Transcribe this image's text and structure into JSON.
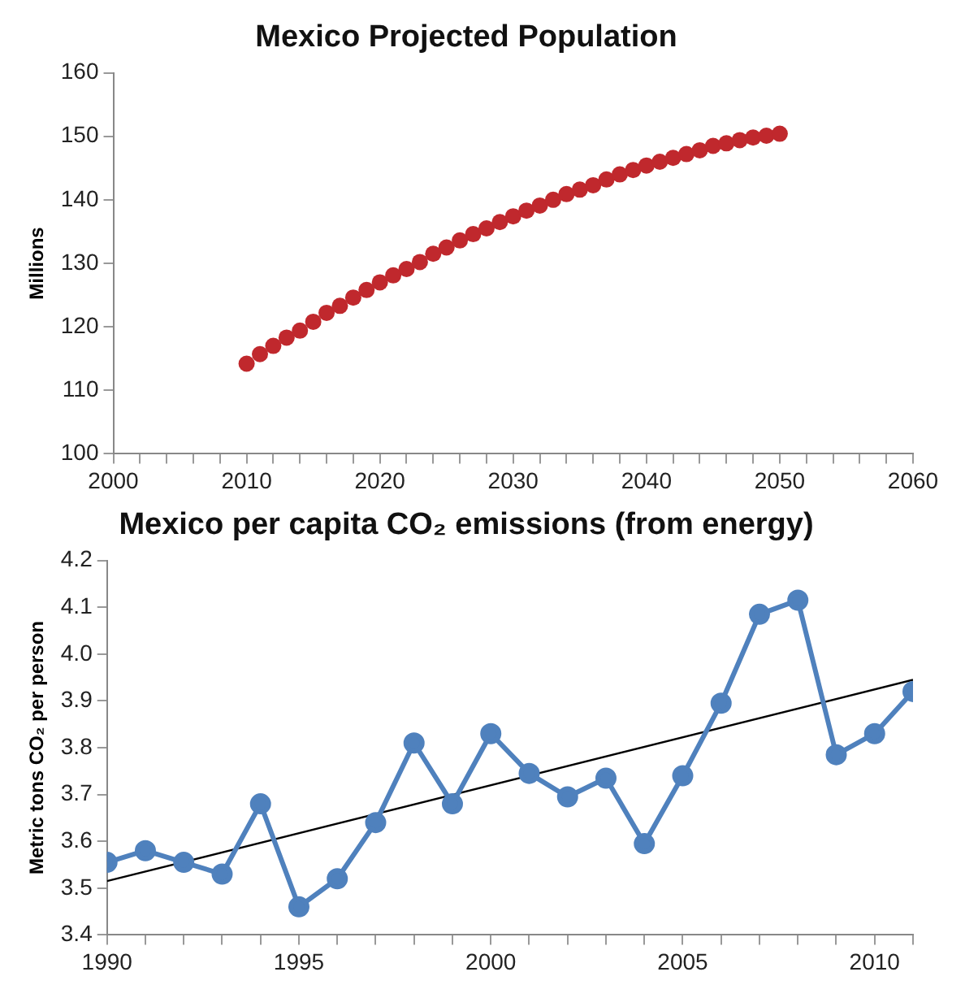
{
  "chart_data": [
    {
      "type": "scatter",
      "title": "Mexico Projected Population",
      "ylabel": "Millions",
      "xlim": [
        2000,
        2060
      ],
      "ylim": [
        100,
        160
      ],
      "xticks": [
        2000,
        {
          "value": 2002,
          "label": null
        },
        {
          "value": 2004,
          "label": null
        },
        {
          "value": 2006,
          "label": null
        },
        {
          "value": 2008,
          "label": null
        },
        2010,
        {
          "value": 2012,
          "label": null
        },
        {
          "value": 2014,
          "label": null
        },
        {
          "value": 2016,
          "label": null
        },
        {
          "value": 2018,
          "label": null
        },
        2020,
        {
          "value": 2022,
          "label": null
        },
        {
          "value": 2024,
          "label": null
        },
        {
          "value": 2026,
          "label": null
        },
        {
          "value": 2028,
          "label": null
        },
        2030,
        {
          "value": 2032,
          "label": null
        },
        {
          "value": 2034,
          "label": null
        },
        {
          "value": 2036,
          "label": null
        },
        {
          "value": 2038,
          "label": null
        },
        2040,
        {
          "value": 2042,
          "label": null
        },
        {
          "value": 2044,
          "label": null
        },
        {
          "value": 2046,
          "label": null
        },
        {
          "value": 2048,
          "label": null
        },
        2050,
        {
          "value": 2052,
          "label": null
        },
        {
          "value": 2054,
          "label": null
        },
        {
          "value": 2056,
          "label": null
        },
        {
          "value": 2058,
          "label": null
        },
        2060
      ],
      "yticks": [
        100,
        110,
        120,
        130,
        140,
        150,
        160
      ],
      "grid": false,
      "legend": false,
      "marker": "circle",
      "x": [
        2010,
        2011,
        2012,
        2013,
        2014,
        2015,
        2016,
        2017,
        2018,
        2019,
        2020,
        2021,
        2022,
        2023,
        2024,
        2025,
        2026,
        2027,
        2028,
        2029,
        2030,
        2031,
        2032,
        2033,
        2034,
        2035,
        2036,
        2037,
        2038,
        2039,
        2040,
        2041,
        2042,
        2043,
        2044,
        2045,
        2046,
        2047,
        2048,
        2049,
        2050
      ],
      "series": [
        {
          "color": "#c0282d",
          "values": [
            114.2,
            115.7,
            117.0,
            118.3,
            119.4,
            120.8,
            122.2,
            123.3,
            124.6,
            125.8,
            127.0,
            128.1,
            129.1,
            130.2,
            131.5,
            132.5,
            133.6,
            134.6,
            135.5,
            136.5,
            137.4,
            138.3,
            139.1,
            140.0,
            140.9,
            141.6,
            142.3,
            143.2,
            144.0,
            144.7,
            145.4,
            146.0,
            146.6,
            147.2,
            147.8,
            148.5,
            148.9,
            149.4,
            149.8,
            150.1,
            150.4
          ]
        }
      ]
    },
    {
      "type": "line",
      "title": "Mexico per capita CO₂ emissions (from energy)",
      "ylabel": "Metric tons CO₂ per person",
      "xlim": [
        1990,
        2011
      ],
      "ylim": [
        3.4,
        4.2
      ],
      "xticks": [
        1990,
        {
          "value": 1991,
          "label": null
        },
        {
          "value": 1992,
          "label": null
        },
        {
          "value": 1993,
          "label": null
        },
        {
          "value": 1994,
          "label": null
        },
        1995,
        {
          "value": 1996,
          "label": null
        },
        {
          "value": 1997,
          "label": null
        },
        {
          "value": 1998,
          "label": null
        },
        {
          "value": 1999,
          "label": null
        },
        2000,
        {
          "value": 2001,
          "label": null
        },
        {
          "value": 2002,
          "label": null
        },
        {
          "value": 2003,
          "label": null
        },
        {
          "value": 2004,
          "label": null
        },
        2005,
        {
          "value": 2006,
          "label": null
        },
        {
          "value": 2007,
          "label": null
        },
        {
          "value": 2008,
          "label": null
        },
        {
          "value": 2009,
          "label": null
        },
        2010,
        {
          "value": 2011,
          "label": null
        }
      ],
      "yticks": [
        {
          "value": 3.4,
          "label": "3.4"
        },
        {
          "value": 3.5,
          "label": "3.5"
        },
        {
          "value": 3.6,
          "label": "3.6"
        },
        {
          "value": 3.7,
          "label": "3.7"
        },
        {
          "value": 3.8,
          "label": "3.8"
        },
        {
          "value": 3.9,
          "label": "3.9"
        },
        {
          "value": 4.0,
          "label": "4.0"
        },
        {
          "value": 4.1,
          "label": "4.1"
        },
        {
          "value": 4.2,
          "label": "4.2"
        }
      ],
      "grid": false,
      "legend": false,
      "marker": "circle",
      "x": [
        1990,
        1991,
        1992,
        1993,
        1994,
        1995,
        1996,
        1997,
        1998,
        1999,
        2000,
        2001,
        2002,
        2003,
        2004,
        2005,
        2006,
        2007,
        2008,
        2009,
        2010,
        2011
      ],
      "series": [
        {
          "color": "#4f81bd",
          "values": [
            3.555,
            3.58,
            3.555,
            3.53,
            3.68,
            3.46,
            3.52,
            3.64,
            3.81,
            3.68,
            3.83,
            3.745,
            3.695,
            3.735,
            3.595,
            3.74,
            3.895,
            4.085,
            4.115,
            3.785,
            3.83,
            3.92
          ]
        },
        {
          "type": "line",
          "marker": "none",
          "color": "#000000",
          "x": [
            1990,
            2011
          ],
          "values": [
            3.515,
            3.945
          ]
        }
      ]
    }
  ]
}
